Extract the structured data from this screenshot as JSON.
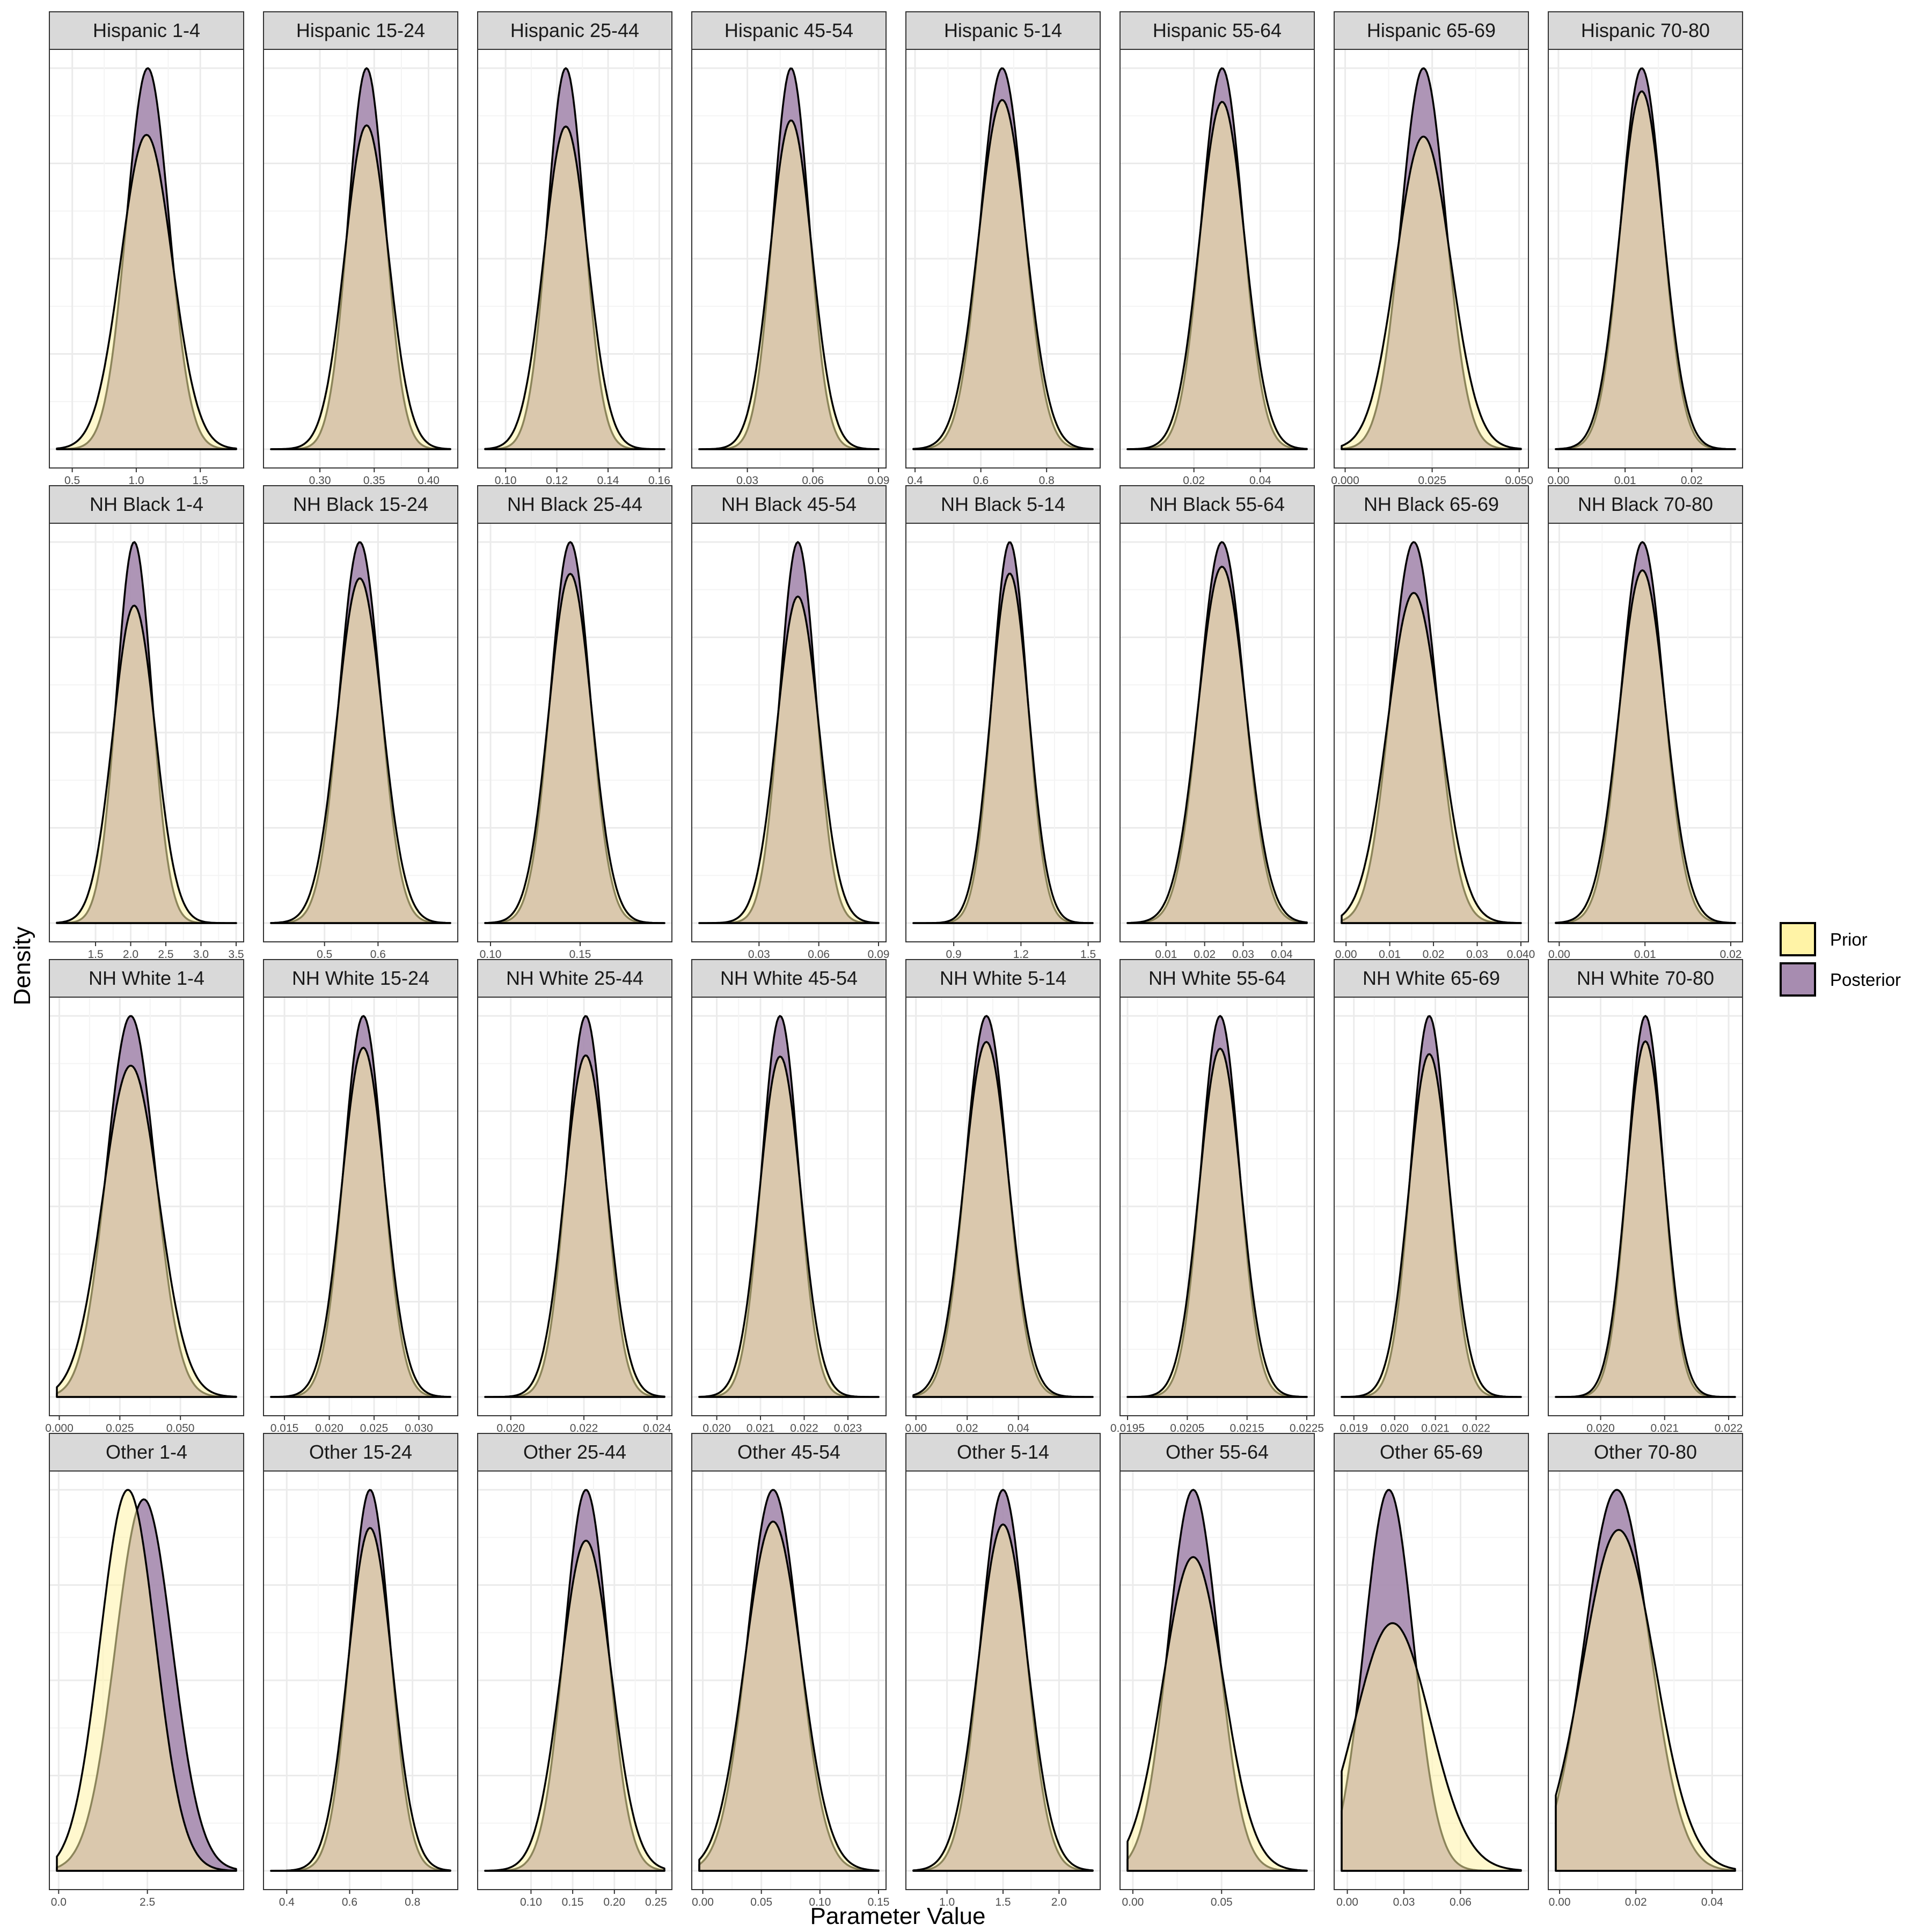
{
  "chart_data": {
    "type": "area",
    "xlabel": "Parameter Value",
    "ylabel": "Density",
    "legend": {
      "placement": "right",
      "entries": [
        {
          "name": "Prior",
          "color": "#FFF3A6"
        },
        {
          "name": "Posterior",
          "color": "#A78CB0"
        }
      ]
    },
    "overlap_color": "#A8867A",
    "grid": true,
    "facets": [
      {
        "label": "Hispanic 1-4",
        "xlim": [
          0.38,
          1.78
        ],
        "ticks": [
          "0.5",
          "1.0",
          "1.5"
        ],
        "tick_values": [
          0.5,
          1.0,
          1.5
        ],
        "prior": {
          "mean": 1.08,
          "sd": 0.2
        },
        "posterior": {
          "mean": 1.09,
          "sd": 0.165
        }
      },
      {
        "label": "Hispanic 15-24",
        "xlim": [
          0.255,
          0.42
        ],
        "ticks": [
          "0.30",
          "0.35",
          "0.40"
        ],
        "tick_values": [
          0.3,
          0.35,
          0.4
        ],
        "prior": {
          "mean": 0.343,
          "sd": 0.02
        },
        "posterior": {
          "mean": 0.343,
          "sd": 0.017
        }
      },
      {
        "label": "Hispanic 25-44",
        "xlim": [
          0.092,
          0.162
        ],
        "ticks": [
          "0.10",
          "0.12",
          "0.14",
          "0.16"
        ],
        "tick_values": [
          0.1,
          0.12,
          0.14,
          0.16
        ],
        "prior": {
          "mean": 0.1235,
          "sd": 0.0085
        },
        "posterior": {
          "mean": 0.1235,
          "sd": 0.0072
        }
      },
      {
        "label": "Hispanic 45-54",
        "xlim": [
          0.008,
          0.09
        ],
        "ticks": [
          "0.03",
          "0.06",
          "0.09"
        ],
        "tick_values": [
          0.03,
          0.06,
          0.09
        ],
        "prior": {
          "mean": 0.05,
          "sd": 0.0095
        },
        "posterior": {
          "mean": 0.05,
          "sd": 0.0082
        }
      },
      {
        "label": "Hispanic 5-14",
        "xlim": [
          0.395,
          0.94
        ],
        "ticks": [
          "0.4",
          "0.6",
          "0.8"
        ],
        "tick_values": [
          0.4,
          0.6,
          0.8
        ],
        "prior": {
          "mean": 0.665,
          "sd": 0.072
        },
        "posterior": {
          "mean": 0.665,
          "sd": 0.066
        }
      },
      {
        "label": "Hispanic 55-64",
        "xlim": [
          0.0,
          0.054
        ],
        "ticks": [
          "0.02",
          "0.04"
        ],
        "tick_values": [
          0.02,
          0.04
        ],
        "prior": {
          "mean": 0.0285,
          "sd": 0.0068
        },
        "posterior": {
          "mean": 0.0285,
          "sd": 0.0062
        }
      },
      {
        "label": "Hispanic 65-69",
        "xlim": [
          -0.001,
          0.0505
        ],
        "ticks": [
          "0.000",
          "0.025",
          "0.050"
        ],
        "tick_values": [
          0.0,
          0.025,
          0.05
        ],
        "prior": {
          "mean": 0.0225,
          "sd": 0.0078
        },
        "posterior": {
          "mean": 0.0225,
          "sd": 0.0064
        }
      },
      {
        "label": "Hispanic 70-80",
        "xlim": [
          -0.0004,
          0.0265
        ],
        "ticks": [
          "0.00",
          "0.01",
          "0.02"
        ],
        "tick_values": [
          0.0,
          0.01,
          0.02
        ],
        "prior": {
          "mean": 0.0125,
          "sd": 0.0033
        },
        "posterior": {
          "mean": 0.0125,
          "sd": 0.0031
        }
      },
      {
        "label": "NH Black 1-4",
        "xlim": [
          0.95,
          3.5
        ],
        "ticks": [
          "1.5",
          "2.0",
          "2.5",
          "3.0",
          "3.5"
        ],
        "tick_values": [
          1.5,
          2.0,
          2.5,
          3.0,
          3.5
        ],
        "prior": {
          "mean": 2.05,
          "sd": 0.3
        },
        "posterior": {
          "mean": 2.05,
          "sd": 0.25
        }
      },
      {
        "label": "NH Black 15-24",
        "xlim": [
          0.4,
          0.735
        ],
        "ticks": [
          "0.5",
          "0.6"
        ],
        "tick_values": [
          0.5,
          0.6
        ],
        "prior": {
          "mean": 0.566,
          "sd": 0.042
        },
        "posterior": {
          "mean": 0.566,
          "sd": 0.038
        }
      },
      {
        "label": "NH Black 25-44",
        "xlim": [
          0.097,
          0.197
        ],
        "ticks": [
          "0.10",
          "0.15"
        ],
        "tick_values": [
          0.1,
          0.15
        ],
        "prior": {
          "mean": 0.1445,
          "sd": 0.012
        },
        "posterior": {
          "mean": 0.1445,
          "sd": 0.011
        }
      },
      {
        "label": "NH Black 45-54",
        "xlim": [
          0.0,
          0.09
        ],
        "ticks": [
          "0.03",
          "0.06",
          "0.09"
        ],
        "tick_values": [
          0.03,
          0.06,
          0.09
        ],
        "prior": {
          "mean": 0.0495,
          "sd": 0.0105
        },
        "posterior": {
          "mean": 0.0495,
          "sd": 0.009
        }
      },
      {
        "label": "NH Black 5-14",
        "xlim": [
          0.72,
          1.52
        ],
        "ticks": [
          "0.9",
          "1.2",
          "1.5"
        ],
        "tick_values": [
          0.9,
          1.2,
          1.5
        ],
        "prior": {
          "mean": 1.15,
          "sd": 0.085
        },
        "posterior": {
          "mean": 1.15,
          "sd": 0.078
        }
      },
      {
        "label": "NH Black 55-64",
        "xlim": [
          0.0,
          0.0465
        ],
        "ticks": [
          "0.01",
          "0.02",
          "0.03",
          "0.04"
        ],
        "tick_values": [
          0.01,
          0.02,
          0.03,
          0.04
        ],
        "prior": {
          "mean": 0.0245,
          "sd": 0.0062
        },
        "posterior": {
          "mean": 0.0245,
          "sd": 0.0058
        }
      },
      {
        "label": "NH Black 65-69",
        "xlim": [
          -0.001,
          0.04
        ],
        "ticks": [
          "0.00",
          "0.01",
          "0.02",
          "0.03",
          "0.040"
        ],
        "tick_values": [
          0.0,
          0.01,
          0.02,
          0.03,
          0.04
        ],
        "prior": {
          "mean": 0.0155,
          "sd": 0.006
        },
        "posterior": {
          "mean": 0.0155,
          "sd": 0.0052
        }
      },
      {
        "label": "NH Black 70-80",
        "xlim": [
          -0.0004,
          0.0205
        ],
        "ticks": [
          "0.00",
          "0.01",
          "0.02"
        ],
        "tick_values": [
          0.0,
          0.01,
          0.02
        ],
        "prior": {
          "mean": 0.0097,
          "sd": 0.0027
        },
        "posterior": {
          "mean": 0.0097,
          "sd": 0.0025
        }
      },
      {
        "label": "NH White 1-4",
        "xlim": [
          -0.001,
          0.073
        ],
        "ticks": [
          "0.000",
          "0.025",
          "0.050"
        ],
        "tick_values": [
          0.0,
          0.025,
          0.05
        ],
        "prior": {
          "mean": 0.0295,
          "sd": 0.0115
        },
        "posterior": {
          "mean": 0.0295,
          "sd": 0.01
        }
      },
      {
        "label": "NH White 15-24",
        "xlim": [
          0.0135,
          0.0335
        ],
        "ticks": [
          "0.015",
          "0.020",
          "0.025",
          "0.030"
        ],
        "tick_values": [
          0.015,
          0.02,
          0.025,
          0.03
        ],
        "prior": {
          "mean": 0.0238,
          "sd": 0.0024
        },
        "posterior": {
          "mean": 0.0238,
          "sd": 0.0022
        }
      },
      {
        "label": "NH White 25-44",
        "xlim": [
          0.0193,
          0.0242
        ],
        "ticks": [
          "0.020",
          "0.022",
          "0.024"
        ],
        "tick_values": [
          0.02,
          0.022,
          0.024
        ],
        "prior": {
          "mean": 0.02205,
          "sd": 0.00058
        },
        "posterior": {
          "mean": 0.02205,
          "sd": 0.00052
        }
      },
      {
        "label": "NH White 45-54",
        "xlim": [
          0.0196,
          0.0237
        ],
        "ticks": [
          "0.020",
          "0.021",
          "0.022",
          "0.023"
        ],
        "tick_values": [
          0.02,
          0.021,
          0.022,
          0.023
        ],
        "prior": {
          "mean": 0.02145,
          "sd": 0.00047
        },
        "posterior": {
          "mean": 0.02145,
          "sd": 0.00042
        }
      },
      {
        "label": "NH White 5-14",
        "xlim": [
          -0.001,
          0.069
        ],
        "ticks": [
          "0.00",
          "0.02",
          "0.04"
        ],
        "tick_values": [
          0.0,
          0.02,
          0.04
        ],
        "prior": {
          "mean": 0.0275,
          "sd": 0.0088
        },
        "posterior": {
          "mean": 0.0275,
          "sd": 0.0082
        }
      },
      {
        "label": "NH White 55-64",
        "xlim": [
          0.0195,
          0.0225
        ],
        "ticks": [
          "0.0195",
          "0.0205",
          "0.0215",
          "0.0225"
        ],
        "tick_values": [
          0.0195,
          0.0205,
          0.0215,
          0.0225
        ],
        "prior": {
          "mean": 0.02105,
          "sd": 0.00035
        },
        "posterior": {
          "mean": 0.02105,
          "sd": 0.00032
        }
      },
      {
        "label": "NH White 65-69",
        "xlim": [
          0.0187,
          0.0231
        ],
        "ticks": [
          "0.019",
          "0.020",
          "0.021",
          "0.022"
        ],
        "tick_values": [
          0.019,
          0.02,
          0.021,
          0.022
        ],
        "prior": {
          "mean": 0.02085,
          "sd": 0.0005
        },
        "posterior": {
          "mean": 0.02085,
          "sd": 0.00045
        }
      },
      {
        "label": "NH White 70-80",
        "xlim": [
          0.0193,
          0.0221
        ],
        "ticks": [
          "0.020",
          "0.021",
          "0.022"
        ],
        "tick_values": [
          0.02,
          0.021,
          0.022
        ],
        "prior": {
          "mean": 0.0207,
          "sd": 0.0003
        },
        "posterior": {
          "mean": 0.0207,
          "sd": 0.00028
        }
      },
      {
        "label": "Other 1-4",
        "xlim": [
          -0.05,
          5.0
        ],
        "ticks": [
          "0.0",
          "2.5"
        ],
        "tick_values": [
          0.0,
          2.5
        ],
        "prior": {
          "mean": 1.95,
          "sd": 0.78
        },
        "posterior": {
          "mean": 2.4,
          "sd": 0.8
        }
      },
      {
        "label": "Other 15-24",
        "xlim": [
          0.35,
          0.92
        ],
        "ticks": [
          "0.4",
          "0.6",
          "0.8"
        ],
        "tick_values": [
          0.4,
          0.6,
          0.8
        ],
        "prior": {
          "mean": 0.665,
          "sd": 0.07
        },
        "posterior": {
          "mean": 0.665,
          "sd": 0.063
        }
      },
      {
        "label": "Other 25-44",
        "xlim": [
          0.045,
          0.26
        ],
        "ticks": [
          "0.10",
          "0.15",
          "0.20",
          "0.25"
        ],
        "tick_values": [
          0.1,
          0.15,
          0.2,
          0.25
        ],
        "prior": {
          "mean": 0.166,
          "sd": 0.03
        },
        "posterior": {
          "mean": 0.166,
          "sd": 0.026
        }
      },
      {
        "label": "Other 45-54",
        "xlim": [
          -0.003,
          0.15
        ],
        "ticks": [
          "0.00",
          "0.05",
          "0.10",
          "0.15"
        ],
        "tick_values": [
          0.0,
          0.05,
          0.1,
          0.15
        ],
        "prior": {
          "mean": 0.06,
          "sd": 0.024
        },
        "posterior": {
          "mean": 0.06,
          "sd": 0.022
        }
      },
      {
        "label": "Other 5-14",
        "xlim": [
          0.7,
          2.3
        ],
        "ticks": [
          "1.0",
          "1.5",
          "2.0"
        ],
        "tick_values": [
          1.0,
          1.5,
          2.0
        ],
        "prior": {
          "mean": 1.5,
          "sd": 0.22
        },
        "posterior": {
          "mean": 1.5,
          "sd": 0.2
        }
      },
      {
        "label": "Other 55-64",
        "xlim": [
          -0.003,
          0.098
        ],
        "ticks": [
          "0.00",
          "0.05"
        ],
        "tick_values": [
          0.0,
          0.05
        ],
        "prior": {
          "mean": 0.034,
          "sd": 0.017
        },
        "posterior": {
          "mean": 0.034,
          "sd": 0.014
        }
      },
      {
        "label": "Other 65-69",
        "xlim": [
          -0.003,
          0.092
        ],
        "ticks": [
          "0.00",
          "0.03",
          "0.06"
        ],
        "tick_values": [
          0.0,
          0.03,
          0.06
        ],
        "prior": {
          "mean": 0.024,
          "sd": 0.02
        },
        "posterior": {
          "mean": 0.022,
          "sd": 0.013
        }
      },
      {
        "label": "Other 70-80",
        "xlim": [
          -0.001,
          0.046
        ],
        "ticks": [
          "0.00",
          "0.02",
          "0.04"
        ],
        "tick_values": [
          0.0,
          0.02,
          0.04
        ],
        "prior": {
          "mean": 0.0155,
          "sd": 0.0095
        },
        "posterior": {
          "mean": 0.015,
          "sd": 0.0085
        }
      }
    ]
  }
}
